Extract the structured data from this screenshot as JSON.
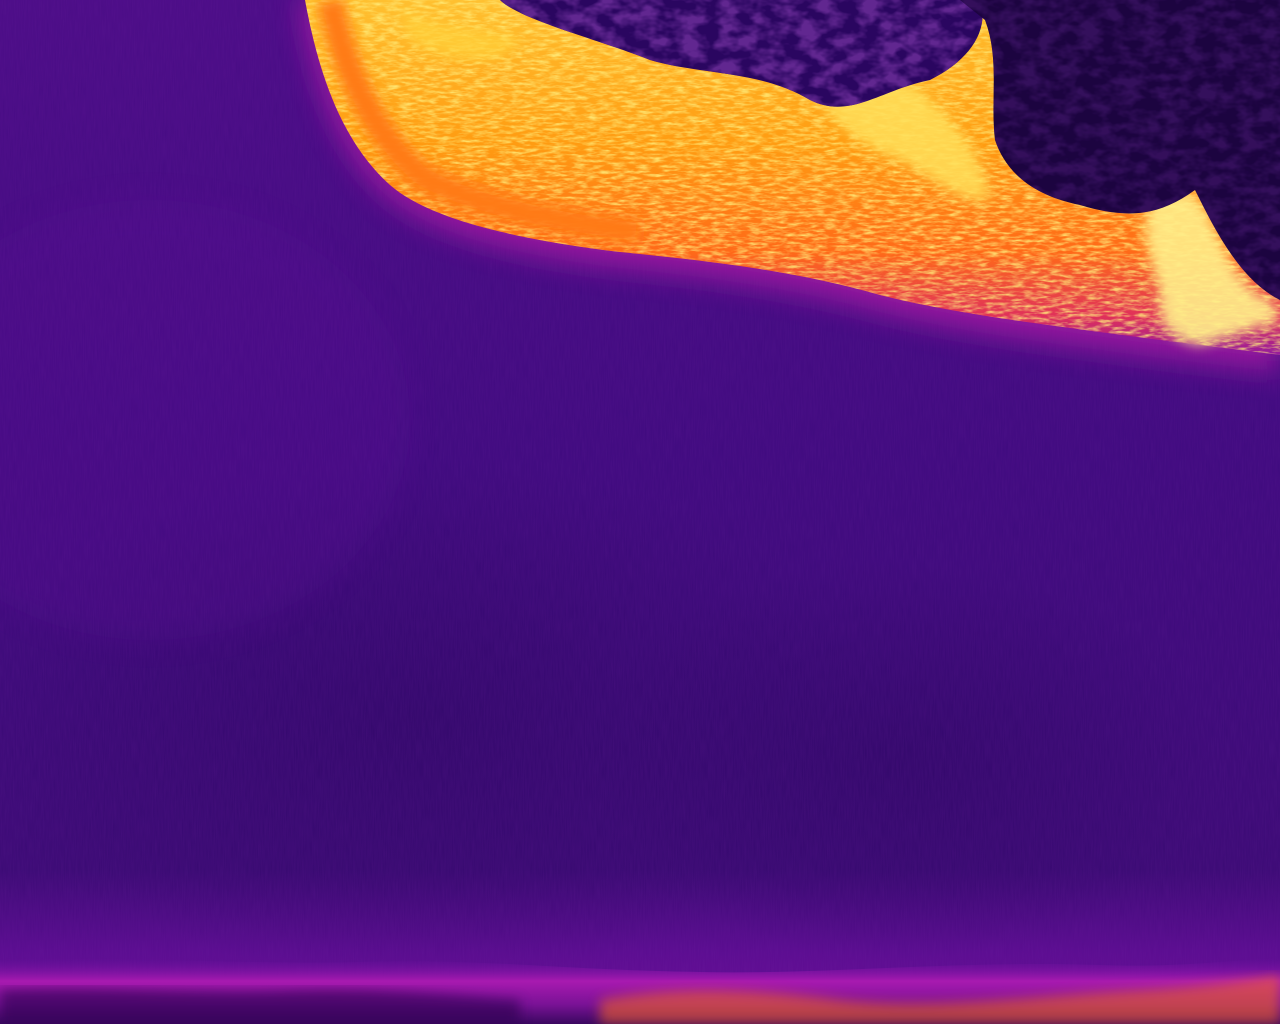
{
  "image": {
    "kind": "thermal aerial photograph",
    "palette": [
      "#1a0030",
      "#3a0a78",
      "#5b0a92",
      "#9b1aa8",
      "#d8248c",
      "#ff5a1e",
      "#ff9a10",
      "#ffd23a",
      "#fff6b0"
    ],
    "regions": [
      {
        "name": "water-body",
        "color": "#3e0a7e"
      },
      {
        "name": "warm-shoreline-top",
        "color": "#ff8a14"
      },
      {
        "name": "hot-vegetation-patches",
        "color": "#ffe05a"
      },
      {
        "name": "cool-canopy",
        "color": "#1c0440"
      },
      {
        "name": "warm-shoreline-bottom",
        "color": "#c81e9a"
      }
    ]
  }
}
